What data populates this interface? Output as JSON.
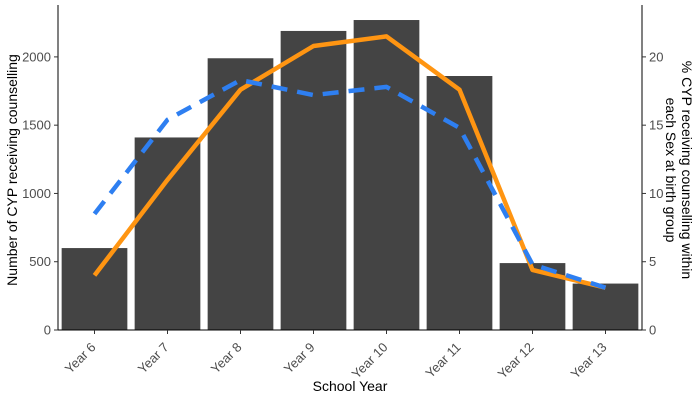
{
  "chart_data": {
    "type": "bar",
    "categories": [
      "Year 6",
      "Year 7",
      "Year 8",
      "Year 9",
      "Year 10",
      "Year 11",
      "Year 12",
      "Year 13"
    ],
    "bar_values": [
      600,
      1410,
      1990,
      2190,
      2270,
      1860,
      490,
      340
    ],
    "bar_color": "#444444",
    "lines": [
      {
        "values": [
          4.0,
          11.0,
          17.6,
          20.8,
          21.5,
          17.6,
          4.4,
          3.1
        ],
        "color": "#ff9512",
        "dash": "solid"
      },
      {
        "values": [
          8.5,
          15.4,
          18.3,
          17.2,
          17.8,
          14.8,
          4.8,
          3.1
        ],
        "color": "#2e7ff1",
        "dash": "dashed"
      }
    ],
    "xlabel": "School Year",
    "ylabel": "Number of CYP receiving counselling",
    "ylabel_right_line1": "% CYP receiving counselling within",
    "ylabel_right_line2": "each Sex at birth group",
    "ylim": [
      0,
      2380
    ],
    "ylim_right": [
      0,
      23.8
    ],
    "yticks": [
      0,
      500,
      1000,
      1500,
      2000
    ],
    "yticks_right": [
      0,
      5,
      10,
      15,
      20
    ],
    "grid": false
  }
}
